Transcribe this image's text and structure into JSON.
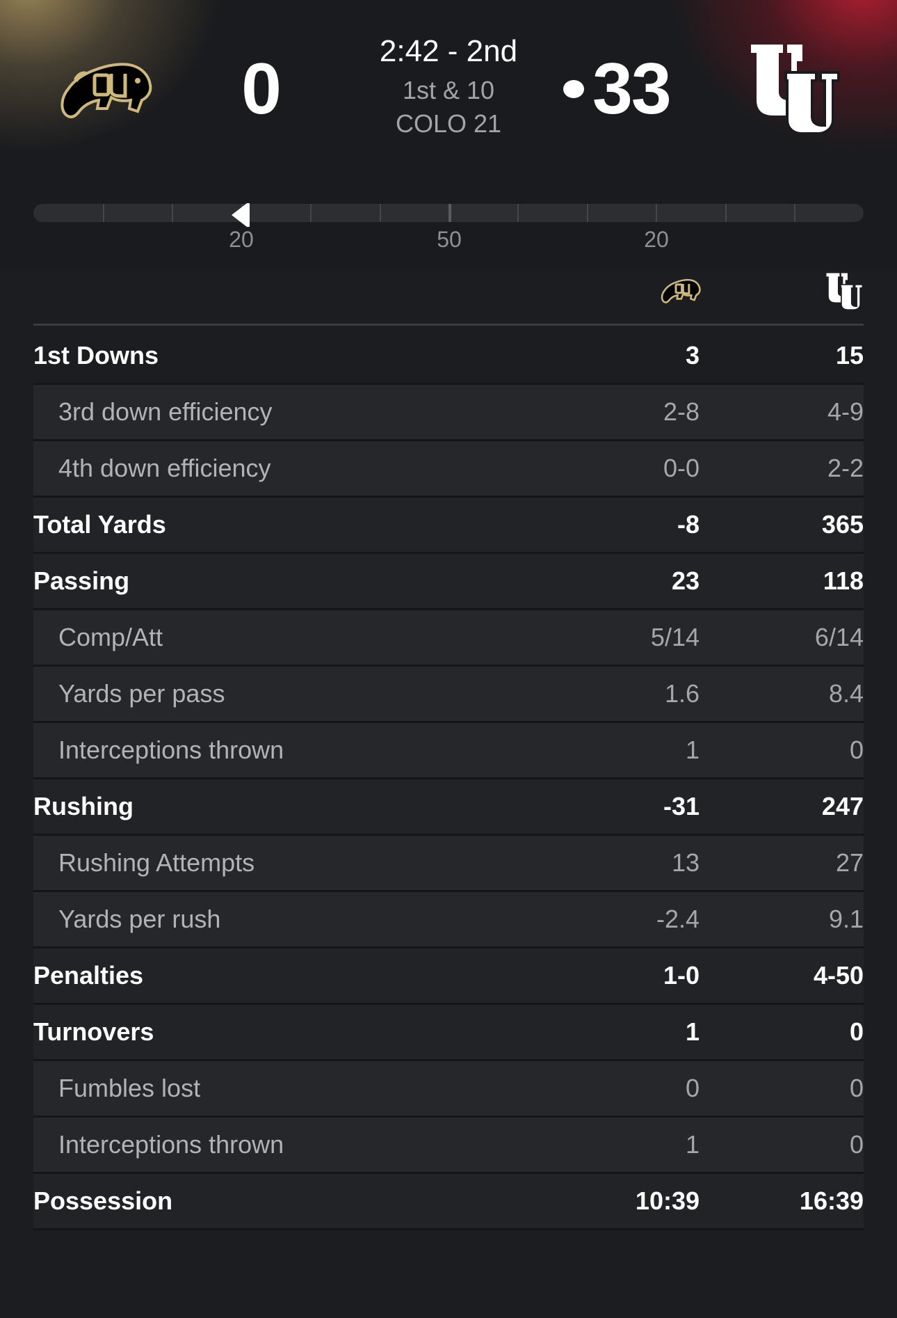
{
  "game": {
    "home_team": {
      "abbr": "COLO",
      "score": "0",
      "logo": "colorado-buffaloes-logo",
      "color": "#b09a68"
    },
    "away_team": {
      "abbr": "UTAH",
      "score": "33",
      "logo": "utah-utes-logo",
      "color": "#cc0000"
    },
    "clock": "2:42 - 2nd",
    "down_distance": "1st & 10",
    "field_position": "COLO 21",
    "possession": "away"
  },
  "field": {
    "yard_labels": [
      "20",
      "50",
      "20"
    ],
    "ball_on_yardline": 21
  },
  "stats": [
    {
      "label": "1st Downs",
      "colo": "3",
      "utah": "15",
      "level": "main"
    },
    {
      "label": "3rd down efficiency",
      "colo": "2-8",
      "utah": "4-9",
      "level": "sub"
    },
    {
      "label": "4th down efficiency",
      "colo": "0-0",
      "utah": "2-2",
      "level": "sub"
    },
    {
      "label": "Total Yards",
      "colo": "-8",
      "utah": "365",
      "level": "main"
    },
    {
      "label": "Passing",
      "colo": "23",
      "utah": "118",
      "level": "main"
    },
    {
      "label": "Comp/Att",
      "colo": "5/14",
      "utah": "6/14",
      "level": "sub"
    },
    {
      "label": "Yards per pass",
      "colo": "1.6",
      "utah": "8.4",
      "level": "sub"
    },
    {
      "label": "Interceptions thrown",
      "colo": "1",
      "utah": "0",
      "level": "sub"
    },
    {
      "label": "Rushing",
      "colo": "-31",
      "utah": "247",
      "level": "main"
    },
    {
      "label": "Rushing Attempts",
      "colo": "13",
      "utah": "27",
      "level": "sub"
    },
    {
      "label": "Yards per rush",
      "colo": "-2.4",
      "utah": "9.1",
      "level": "sub"
    },
    {
      "label": "Penalties",
      "colo": "1-0",
      "utah": "4-50",
      "level": "main"
    },
    {
      "label": "Turnovers",
      "colo": "1",
      "utah": "0",
      "level": "main"
    },
    {
      "label": "Fumbles lost",
      "colo": "0",
      "utah": "0",
      "level": "sub"
    },
    {
      "label": "Interceptions thrown",
      "colo": "1",
      "utah": "0",
      "level": "sub"
    },
    {
      "label": "Possession",
      "colo": "10:39",
      "utah": "16:39",
      "level": "main"
    }
  ]
}
